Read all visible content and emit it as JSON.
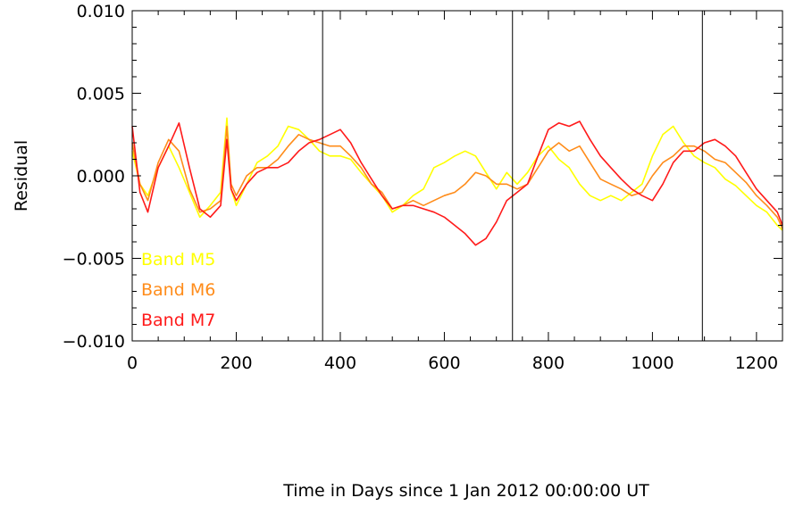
{
  "chart_data": {
    "type": "line",
    "title": "",
    "xlabel": "Time in Days since 1 Jan 2012 00:00:00 UT",
    "ylabel": "Residual",
    "xlim": [
      0,
      1250
    ],
    "ylim": [
      -0.01,
      0.01
    ],
    "x_ticks": [
      0,
      200,
      400,
      600,
      800,
      1000,
      1200
    ],
    "x_tick_labels": [
      "0",
      "200",
      "400",
      "600",
      "800",
      "1000",
      "1200"
    ],
    "y_ticks": [
      -0.01,
      -0.005,
      0.0,
      0.005,
      0.01
    ],
    "y_tick_labels": [
      "−0.010",
      "−0.005",
      "0.000",
      "0.005",
      "0.010"
    ],
    "vertical_lines_x": [
      366,
      731,
      1096
    ],
    "grid": false,
    "legend_position": "bottom-left",
    "series": [
      {
        "name": "Band M5",
        "color": "#ffff00",
        "x": [
          0,
          15,
          30,
          50,
          70,
          90,
          110,
          130,
          150,
          170,
          182,
          190,
          200,
          220,
          240,
          260,
          280,
          300,
          320,
          340,
          360,
          380,
          400,
          420,
          440,
          460,
          480,
          500,
          520,
          540,
          560,
          580,
          600,
          620,
          640,
          660,
          680,
          700,
          720,
          740,
          760,
          780,
          800,
          820,
          840,
          860,
          880,
          900,
          920,
          940,
          960,
          980,
          1000,
          1020,
          1040,
          1060,
          1080,
          1100,
          1120,
          1140,
          1160,
          1180,
          1200,
          1220,
          1240,
          1250
        ],
        "y": [
          0.0015,
          -0.0005,
          -0.0012,
          0.0005,
          0.0018,
          0.0005,
          -0.001,
          -0.0025,
          -0.0018,
          -0.001,
          0.0035,
          -0.0008,
          -0.0018,
          -0.0005,
          0.0008,
          0.0012,
          0.0018,
          0.003,
          0.0028,
          0.0022,
          0.0015,
          0.0012,
          0.0012,
          0.001,
          0.0002,
          -0.0005,
          -0.0012,
          -0.0022,
          -0.0018,
          -0.0012,
          -0.0008,
          0.0005,
          0.0008,
          0.0012,
          0.0015,
          0.0012,
          0.0002,
          -0.0008,
          0.0002,
          -0.0005,
          0.0002,
          0.0012,
          0.0018,
          0.001,
          0.0005,
          -0.0005,
          -0.0012,
          -0.0015,
          -0.0012,
          -0.0015,
          -0.001,
          -0.0005,
          0.0012,
          0.0025,
          0.003,
          0.002,
          0.0012,
          0.0008,
          0.0005,
          -0.0002,
          -0.0006,
          -0.0012,
          -0.0018,
          -0.0022,
          -0.003,
          -0.0033
        ]
      },
      {
        "name": "Band M6",
        "color": "#ff8c1a",
        "x": [
          0,
          15,
          30,
          50,
          70,
          90,
          110,
          130,
          150,
          170,
          182,
          190,
          200,
          220,
          240,
          260,
          280,
          300,
          320,
          340,
          360,
          380,
          400,
          420,
          440,
          460,
          480,
          500,
          520,
          540,
          560,
          580,
          600,
          620,
          640,
          660,
          680,
          700,
          720,
          740,
          760,
          780,
          800,
          820,
          840,
          860,
          880,
          900,
          920,
          940,
          960,
          980,
          1000,
          1020,
          1040,
          1060,
          1080,
          1100,
          1120,
          1140,
          1160,
          1180,
          1200,
          1220,
          1240,
          1250
        ],
        "y": [
          0.002,
          -0.0005,
          -0.0015,
          0.0008,
          0.0022,
          0.0015,
          -0.0008,
          -0.0022,
          -0.002,
          -0.0015,
          0.003,
          -0.0005,
          -0.0012,
          0.0,
          0.0005,
          0.0005,
          0.001,
          0.0018,
          0.0025,
          0.0022,
          0.002,
          0.0018,
          0.0018,
          0.0012,
          0.0005,
          -0.0005,
          -0.001,
          -0.002,
          -0.0018,
          -0.0015,
          -0.0018,
          -0.0015,
          -0.0012,
          -0.001,
          -0.0005,
          0.0002,
          0.0,
          -0.0005,
          -0.0005,
          -0.0008,
          -0.0005,
          0.0005,
          0.0015,
          0.002,
          0.0015,
          0.0018,
          0.0008,
          -0.0002,
          -0.0005,
          -0.0008,
          -0.0012,
          -0.001,
          0.0,
          0.0008,
          0.0012,
          0.0018,
          0.0018,
          0.0015,
          0.001,
          0.0008,
          0.0002,
          -0.0004,
          -0.0012,
          -0.0018,
          -0.0025,
          -0.0032
        ]
      },
      {
        "name": "Band M7",
        "color": "#ff1a1a",
        "x": [
          0,
          15,
          30,
          50,
          70,
          90,
          110,
          130,
          150,
          170,
          182,
          190,
          200,
          220,
          240,
          260,
          280,
          300,
          320,
          340,
          360,
          380,
          400,
          420,
          440,
          460,
          480,
          500,
          520,
          540,
          560,
          580,
          600,
          620,
          640,
          660,
          680,
          700,
          720,
          740,
          760,
          780,
          800,
          820,
          840,
          860,
          880,
          900,
          920,
          940,
          960,
          980,
          1000,
          1020,
          1040,
          1060,
          1080,
          1100,
          1120,
          1140,
          1160,
          1180,
          1200,
          1220,
          1240,
          1250
        ],
        "y": [
          0.003,
          -0.001,
          -0.0022,
          0.0005,
          0.0018,
          0.0032,
          0.0005,
          -0.002,
          -0.0025,
          -0.0018,
          0.0022,
          -0.0008,
          -0.0015,
          -0.0005,
          0.0002,
          0.0005,
          0.0005,
          0.0008,
          0.0015,
          0.002,
          0.0022,
          0.0025,
          0.0028,
          0.002,
          0.0008,
          -0.0002,
          -0.0012,
          -0.002,
          -0.0018,
          -0.0018,
          -0.002,
          -0.0022,
          -0.0025,
          -0.003,
          -0.0035,
          -0.0042,
          -0.0038,
          -0.0028,
          -0.0015,
          -0.001,
          -0.0005,
          0.0012,
          0.0028,
          0.0032,
          0.003,
          0.0033,
          0.0022,
          0.0012,
          0.0005,
          -0.0002,
          -0.0008,
          -0.0012,
          -0.0015,
          -0.0005,
          0.0008,
          0.0015,
          0.0015,
          0.002,
          0.0022,
          0.0018,
          0.0012,
          0.0002,
          -0.0008,
          -0.0015,
          -0.0022,
          -0.003
        ]
      }
    ]
  }
}
